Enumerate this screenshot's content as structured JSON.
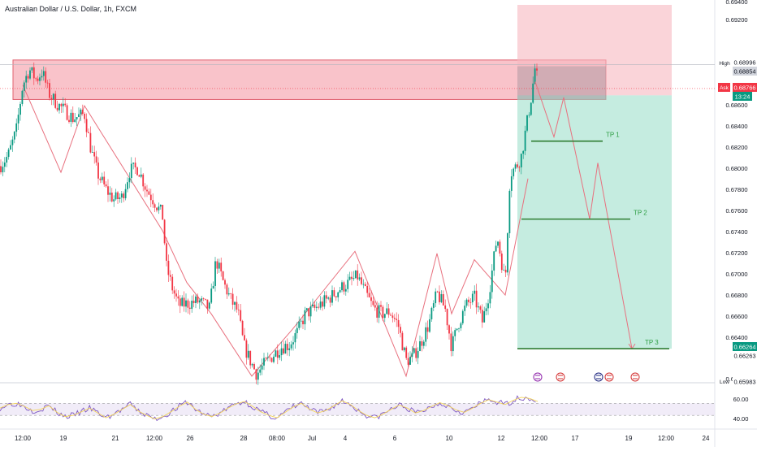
{
  "header": {
    "symbol_title": "Australian Dollar / U.S. Dollar, 1h, FXCM"
  },
  "price_axis": {
    "ticks": [
      "0.69400",
      "0.69200",
      "0.68600",
      "0.68400",
      "0.68200",
      "0.68000",
      "0.67800",
      "0.67600",
      "0.67400",
      "0.67200",
      "0.67000",
      "0.66800",
      "0.66600",
      "0.66400",
      "0.66000"
    ],
    "high_label": "High",
    "high_value": "0.68996",
    "high_value_box": "0.68854",
    "ask_label": "Ask",
    "ask_value": "0.68766",
    "countdown": "13:24",
    "target_value": "0.66264",
    "target_partial": "0.66263",
    "low_label": "Low",
    "low_value": "0.65983"
  },
  "time_axis": {
    "ticks": [
      "12:00",
      "19",
      "21",
      "12:00",
      "26",
      "28",
      "08:00",
      "Jul",
      "4",
      "6",
      "10",
      "12",
      "12:00",
      "17",
      "19",
      "12:00",
      "24"
    ]
  },
  "rsi_panel": {
    "levels": [
      "60.00",
      "40.00"
    ]
  },
  "annotations": {
    "tp1": "TP 1",
    "tp2": "TP 2",
    "tp3": "TP 3"
  },
  "colors": {
    "up_candle": "#089981",
    "down_candle": "#f23645",
    "resistance_zone": "#f7a9b3",
    "target_zone": "#9fe0cb",
    "stop_zone": "#f7b7bf",
    "tp_line": "#2e7d32",
    "zigzag": "#e8707e",
    "rsi_line": "#7e57c2",
    "rsi_ma": "#f2d35a",
    "rsi_band": "#ede7f6"
  },
  "chart_data": {
    "type": "candlestick",
    "symbol": "AUDUSD",
    "timeframe": "1h",
    "source": "FXCM",
    "y_axis": {
      "min": 0.6596,
      "max": 0.6957
    },
    "resistance_zone": {
      "low": 0.6866,
      "high": 0.6904
    },
    "position": {
      "entry": 0.687,
      "stop_top": 0.6957,
      "target": 0.66264
    },
    "take_profits": [
      {
        "label": "TP 1",
        "price": 0.6826
      },
      {
        "label": "TP 2",
        "price": 0.6751
      },
      {
        "label": "TP 3",
        "price": 0.66264
      }
    ],
    "price_path": [
      {
        "x": 0,
        "y": 0.6802
      },
      {
        "x": 10,
        "y": 0.6812
      },
      {
        "x": 20,
        "y": 0.6836
      },
      {
        "x": 28,
        "y": 0.688
      },
      {
        "x": 36,
        "y": 0.6895
      },
      {
        "x": 45,
        "y": 0.6885
      },
      {
        "x": 52,
        "y": 0.6893
      },
      {
        "x": 60,
        "y": 0.6872
      },
      {
        "x": 70,
        "y": 0.6862
      },
      {
        "x": 80,
        "y": 0.6855
      },
      {
        "x": 90,
        "y": 0.6848
      },
      {
        "x": 104,
        "y": 0.6852
      },
      {
        "x": 112,
        "y": 0.6818
      },
      {
        "x": 120,
        "y": 0.6795
      },
      {
        "x": 130,
        "y": 0.678
      },
      {
        "x": 140,
        "y": 0.677
      },
      {
        "x": 150,
        "y": 0.6772
      },
      {
        "x": 160,
        "y": 0.6798
      },
      {
        "x": 170,
        "y": 0.68
      },
      {
        "x": 180,
        "y": 0.678
      },
      {
        "x": 190,
        "y": 0.6768
      },
      {
        "x": 200,
        "y": 0.6755
      },
      {
        "x": 205,
        "y": 0.6705
      },
      {
        "x": 212,
        "y": 0.6685
      },
      {
        "x": 220,
        "y": 0.6668
      },
      {
        "x": 232,
        "y": 0.667
      },
      {
        "x": 245,
        "y": 0.6672
      },
      {
        "x": 258,
        "y": 0.6665
      },
      {
        "x": 266,
        "y": 0.6712
      },
      {
        "x": 275,
        "y": 0.669
      },
      {
        "x": 285,
        "y": 0.6672
      },
      {
        "x": 293,
        "y": 0.6662
      },
      {
        "x": 300,
        "y": 0.663
      },
      {
        "x": 308,
        "y": 0.6615
      },
      {
        "x": 316,
        "y": 0.6602
      },
      {
        "x": 326,
        "y": 0.6612
      },
      {
        "x": 336,
        "y": 0.662
      },
      {
        "x": 346,
        "y": 0.6628
      },
      {
        "x": 356,
        "y": 0.663
      },
      {
        "x": 366,
        "y": 0.6642
      },
      {
        "x": 376,
        "y": 0.666
      },
      {
        "x": 388,
        "y": 0.6665
      },
      {
        "x": 400,
        "y": 0.6672
      },
      {
        "x": 410,
        "y": 0.6678
      },
      {
        "x": 420,
        "y": 0.6685
      },
      {
        "x": 430,
        "y": 0.669
      },
      {
        "x": 440,
        "y": 0.6696
      },
      {
        "x": 450,
        "y": 0.668
      },
      {
        "x": 460,
        "y": 0.6665
      },
      {
        "x": 470,
        "y": 0.666
      },
      {
        "x": 480,
        "y": 0.6662
      },
      {
        "x": 490,
        "y": 0.665
      },
      {
        "x": 500,
        "y": 0.6615
      },
      {
        "x": 508,
        "y": 0.6618
      },
      {
        "x": 518,
        "y": 0.6632
      },
      {
        "x": 528,
        "y": 0.665
      },
      {
        "x": 538,
        "y": 0.668
      },
      {
        "x": 548,
        "y": 0.6665
      },
      {
        "x": 556,
        "y": 0.6628
      },
      {
        "x": 564,
        "y": 0.665
      },
      {
        "x": 574,
        "y": 0.6668
      },
      {
        "x": 584,
        "y": 0.6676
      },
      {
        "x": 594,
        "y": 0.6652
      },
      {
        "x": 602,
        "y": 0.668
      },
      {
        "x": 612,
        "y": 0.6735
      },
      {
        "x": 622,
        "y": 0.669
      },
      {
        "x": 628,
        "y": 0.6795
      },
      {
        "x": 636,
        "y": 0.6802
      },
      {
        "x": 642,
        "y": 0.6812
      },
      {
        "x": 648,
        "y": 0.684
      },
      {
        "x": 654,
        "y": 0.6868
      },
      {
        "x": 659,
        "y": 0.6898
      },
      {
        "x": 663,
        "y": 0.6878
      }
    ],
    "projection": [
      {
        "x": 659,
        "y": 0.6883
      },
      {
        "x": 682,
        "y": 0.683
      },
      {
        "x": 694,
        "y": 0.6868
      },
      {
        "x": 726,
        "y": 0.6751
      },
      {
        "x": 736,
        "y": 0.6805
      },
      {
        "x": 778,
        "y": 0.66264
      }
    ],
    "zigzag": [
      {
        "x": 28,
        "y": 0.688
      },
      {
        "x": 75,
        "y": 0.6796
      },
      {
        "x": 104,
        "y": 0.686
      },
      {
        "x": 200,
        "y": 0.674
      },
      {
        "x": 230,
        "y": 0.669
      },
      {
        "x": 260,
        "y": 0.666
      },
      {
        "x": 310,
        "y": 0.66
      },
      {
        "x": 360,
        "y": 0.6645
      },
      {
        "x": 437,
        "y": 0.672
      },
      {
        "x": 500,
        "y": 0.66
      },
      {
        "x": 538,
        "y": 0.6718
      },
      {
        "x": 556,
        "y": 0.666
      },
      {
        "x": 584,
        "y": 0.6712
      },
      {
        "x": 622,
        "y": 0.6678
      },
      {
        "x": 650,
        "y": 0.679
      }
    ],
    "rsi": {
      "levels": [
        60,
        40
      ],
      "values": [
        52,
        58,
        60,
        55,
        48,
        50,
        56,
        45,
        38,
        40,
        46,
        52,
        44,
        36,
        42,
        50,
        58,
        47,
        40,
        34,
        38,
        46,
        55,
        62,
        50,
        42,
        38,
        44,
        52,
        59,
        63,
        55,
        46,
        40,
        36,
        45,
        54,
        60,
        50,
        44,
        48,
        56,
        64,
        58,
        48,
        40,
        36,
        42,
        50,
        57,
        52,
        44,
        48,
        55,
        61,
        56,
        49,
        45,
        52,
        60,
        66,
        62,
        58,
        65,
        70,
        68,
        63
      ]
    },
    "time_ticks": [
      "12:00",
      "19",
      "21",
      "12:00",
      "26",
      "28",
      "08:00",
      "Jul",
      "4",
      "6",
      "10",
      "12",
      "12:00",
      "17",
      "19",
      "12:00",
      "24"
    ]
  }
}
